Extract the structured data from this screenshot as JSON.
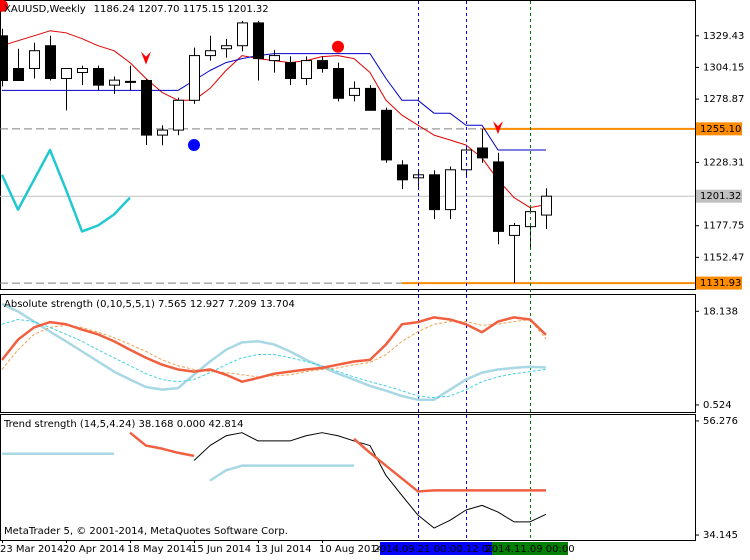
{
  "chart_data": [
    {
      "type": "candlestick",
      "title": "XAUUSD,Weekly",
      "ohlc_label": "1186.24 1207.70 1175.15 1201.32",
      "categories": [
        "23 Mar 2014",
        null,
        null,
        null,
        "20 Apr 2014",
        null,
        null,
        null,
        "18 May 2014",
        null,
        null,
        null,
        "15 Jun 2014",
        null,
        null,
        null,
        "13 Jul 2014",
        null,
        null,
        null,
        "10 Aug 2014",
        null,
        null,
        null,
        null,
        null,
        "2014.09.21 00:00",
        null,
        null,
        "2014.10.12 00:00",
        null,
        null,
        null,
        "2014.11.09 00:00",
        null
      ],
      "open": [
        1329.4,
        1303.3,
        1303.3,
        1321.5,
        1295.3,
        1300.1,
        1303.3,
        1290,
        1293,
        1293.7,
        1250.1,
        1254.1,
        1277.9,
        1313.6,
        1319.1,
        1321.5,
        1339.7,
        1309.6,
        1308,
        1295.3,
        1309.6,
        1303.3,
        1281.8,
        1287.4,
        1269.9,
        1226.3,
        1216,
        1218.4,
        1190.6,
        1222.4,
        1239.8,
        1228.7,
        1170,
        1177,
        1186.24
      ],
      "high": [
        1335,
        1319.1,
        1323.9,
        1329.4,
        1303.3,
        1305.6,
        1305.6,
        1297,
        1305.6,
        1295,
        1258,
        1280,
        1320,
        1329.4,
        1327,
        1341.3,
        1341.3,
        1318,
        1313,
        1313,
        1313,
        1308,
        1293,
        1290,
        1272,
        1230,
        1222,
        1222,
        1225,
        1240,
        1255,
        1236,
        1180,
        1192,
        1207.7
      ],
      "low": [
        1289,
        1293.7,
        1295.3,
        1293.7,
        1269.9,
        1290,
        1285.8,
        1283,
        1285.8,
        1242.2,
        1242,
        1250,
        1275,
        1309.6,
        1312,
        1317,
        1293.7,
        1300,
        1290,
        1290,
        1300,
        1277,
        1277,
        1269.9,
        1228,
        1207,
        1207,
        1183,
        1183,
        1218,
        1228,
        1162.9,
        1131.93,
        1160,
        1175.15
      ],
      "close": [
        1293.7,
        1293.7,
        1317.5,
        1295.3,
        1303.3,
        1303.3,
        1290,
        1294,
        1292.2,
        1250.1,
        1254.1,
        1277.9,
        1313.6,
        1317.5,
        1321.5,
        1339.7,
        1311.2,
        1313.6,
        1295.3,
        1309.6,
        1303.3,
        1279.5,
        1287.4,
        1269.9,
        1230.3,
        1214.4,
        1218.4,
        1190.6,
        1222.4,
        1238.2,
        1231.9,
        1173.2,
        1177.9,
        1189,
        1201.32
      ],
      "up_color": "#ffffff",
      "down_color": "#000000",
      "ylim": [
        1127.2,
        1357.2
      ],
      "yticks": [
        1329.43,
        1304.15,
        1278.87,
        1228.31,
        1177.75,
        1152.47
      ],
      "series": [
        {
          "color": "#e00000",
          "values": [
            1321.5,
            1325.5,
            1329.4,
            1333.4,
            1331.8,
            1327.1,
            1321.5,
            1317.5,
            1308,
            1295.3,
            1284.2,
            1277.9,
            1277.9,
            1287.4,
            1301.7,
            1313.6,
            1311.2,
            1309.6,
            1308,
            1309.6,
            1312.8,
            1313.6,
            1311.2,
            1300.1,
            1277.9,
            1266,
            1258,
            1250.1,
            1246.2,
            1242.2,
            1231.9,
            1214.4,
            1200.2,
            1192.2,
            1194.6
          ]
        },
        {
          "color": "#0000c8",
          "values": [
            1285.8,
            1285.8,
            1285.8,
            1285.8,
            1285.8,
            1285.8,
            1285.8,
            1285.8,
            1285.8,
            1285.8,
            1285.8,
            1285.8,
            1293.7,
            1301.7,
            1308,
            1311.2,
            1313.6,
            1315.2,
            1315.2,
            1315.2,
            1315.2,
            1315.2,
            1315.2,
            1315.2,
            1295.3,
            1277.9,
            1277.9,
            1267.6,
            1267.6,
            1258,
            1258,
            1238.2,
            1238.2,
            1238.2,
            1238.2
          ]
        },
        {
          "color": "#20c8d0",
          "width": 2.5,
          "values": [
            1218.4,
            1190.6,
            1214.4,
            1238.2,
            1206.5,
            1173.2,
            1177.9,
            1186.7,
            1200.2,
            null,
            null,
            null,
            null,
            null,
            null,
            null,
            null,
            null,
            null,
            null,
            null,
            null,
            null,
            null,
            null,
            null,
            null,
            null,
            null,
            null,
            null,
            null,
            null,
            null,
            null
          ]
        }
      ],
      "levels": [
        {
          "value": 1255.1,
          "label": "1255.10",
          "color": "#ff8c00",
          "from": 30
        },
        {
          "value": 1201.32,
          "label": "1201.32",
          "color": "#c0c0c0"
        },
        {
          "value": 1131.93,
          "label": "1131.93",
          "color": "#ff8c00",
          "from": 25
        }
      ],
      "signals": [
        {
          "index": 0,
          "value": 1353.4,
          "shape": "dot",
          "color": "#ff0000"
        },
        {
          "index": 9,
          "value": 1311.2,
          "shape": "arrow",
          "color": "#ff0000"
        },
        {
          "index": 12,
          "value": 1242.2,
          "shape": "dot",
          "color": "#0000ff"
        },
        {
          "index": 21,
          "value": 1320.7,
          "shape": "dot",
          "color": "#ff0000"
        },
        {
          "index": 31,
          "value": 1255.7,
          "shape": "arrow",
          "color": "#ff0000"
        }
      ],
      "vlines": [
        {
          "index": 29,
          "color": "#0000ff"
        },
        {
          "index": 26,
          "color": "#0000ff"
        },
        {
          "index": 33,
          "color": "#008000"
        }
      ]
    },
    {
      "type": "line",
      "title": "Absolute strength (0,10,5,5,1) 7.565 12.927 7.209 13.704",
      "ylim": [
        -0.8,
        21.2
      ],
      "yticks": [
        18.138,
        0.524
      ],
      "series": [
        {
          "color": "#a8d8e4",
          "width": 2.5,
          "values": [
            19.5,
            18.1,
            16.2,
            14.3,
            12.5,
            10.6,
            8.7,
            6.8,
            5.3,
            3.9,
            3.4,
            3.7,
            6.2,
            8.7,
            10.9,
            12.3,
            12.5,
            11.9,
            10.6,
            9,
            7.7,
            6.4,
            5.3,
            4.1,
            3.2,
            2.2,
            1.5,
            1.5,
            3.4,
            5.3,
            6.6,
            7.2,
            7.5,
            7.7,
            7.565
          ]
        },
        {
          "color": "#f0a050",
          "dash": true,
          "values": [
            7.2,
            10.9,
            13.8,
            15.1,
            15.5,
            15.1,
            14.2,
            13.2,
            11.9,
            10.6,
            9,
            7.9,
            7.2,
            6.8,
            6.6,
            6.2,
            5.8,
            6,
            6.2,
            6.8,
            7.2,
            7.5,
            8.1,
            8.5,
            10,
            12.5,
            14.3,
            15.7,
            16.2,
            16.2,
            15.5,
            15.7,
            16.2,
            16.6,
            12.927
          ]
        },
        {
          "color": "#40d0e0",
          "dash": true,
          "values": [
            15.7,
            16.6,
            16.2,
            15.1,
            13.8,
            12.5,
            10.9,
            9.4,
            7.9,
            6.4,
            5.3,
            4.9,
            5.3,
            6.6,
            8.1,
            9.4,
            10,
            10,
            9.4,
            8.7,
            7.9,
            6.8,
            5.8,
            4.9,
            4.1,
            3.2,
            2.2,
            1.9,
            2.2,
            3.4,
            4.9,
            5.8,
            6.4,
            6.8,
            7.209
          ]
        },
        {
          "color": "#f06040",
          "width": 2.5,
          "values": [
            9,
            12.8,
            15.1,
            16.1,
            15.7,
            14.7,
            13.8,
            12.5,
            10.9,
            9.4,
            8.1,
            7.2,
            6.8,
            7.2,
            6.2,
            4.9,
            5.6,
            6.4,
            6.8,
            7.2,
            7.5,
            8.1,
            8.7,
            9,
            11.9,
            15.7,
            16.1,
            17,
            16.6,
            15.7,
            14.2,
            16.2,
            17,
            16.6,
            13.704
          ]
        }
      ]
    },
    {
      "type": "line",
      "title": "Trend strength (14,5,4.24) 38.168 0.000 42.814",
      "ylim": [
        33.18,
        57.43
      ],
      "yticks": [
        56.276,
        34.145
      ],
      "series": [
        {
          "color": "#000000",
          "width": 1,
          "values": [
            null,
            null,
            null,
            null,
            null,
            null,
            null,
            null,
            null,
            null,
            null,
            null,
            48.6,
            51.5,
            53.4,
            54,
            52.4,
            52.4,
            52.4,
            53.4,
            54,
            53.4,
            52.4,
            51.5,
            45.7,
            41.8,
            38,
            35.5,
            37,
            39,
            39.9,
            38.6,
            36.7,
            36.7,
            38.168
          ]
        },
        {
          "color": "#a8d8e4",
          "width": 2.5,
          "values": [
            49.9,
            49.9,
            49.9,
            49.9,
            49.9,
            49.9,
            49.9,
            49.9,
            null,
            null,
            null,
            null,
            null,
            44.7,
            46.7,
            47.6,
            47.6,
            47.6,
            47.6,
            47.6,
            47.6,
            47.6,
            47.6,
            null,
            null,
            null,
            null,
            null,
            null,
            null,
            null,
            null,
            null,
            null,
            null
          ]
        },
        {
          "color": "#f06040",
          "width": 2.5,
          "values": [
            null,
            null,
            null,
            null,
            null,
            null,
            null,
            null,
            54,
            51.5,
            50.9,
            50.1,
            49.5,
            null,
            null,
            null,
            null,
            null,
            null,
            null,
            null,
            null,
            52.8,
            50.1,
            47.6,
            45.1,
            42.6,
            42.8,
            42.8,
            42.8,
            42.8,
            42.8,
            42.8,
            42.8,
            42.814
          ]
        }
      ]
    }
  ],
  "footer": "MetaTrader 5, © 2001-2014, MetaQuotes Software Corp."
}
